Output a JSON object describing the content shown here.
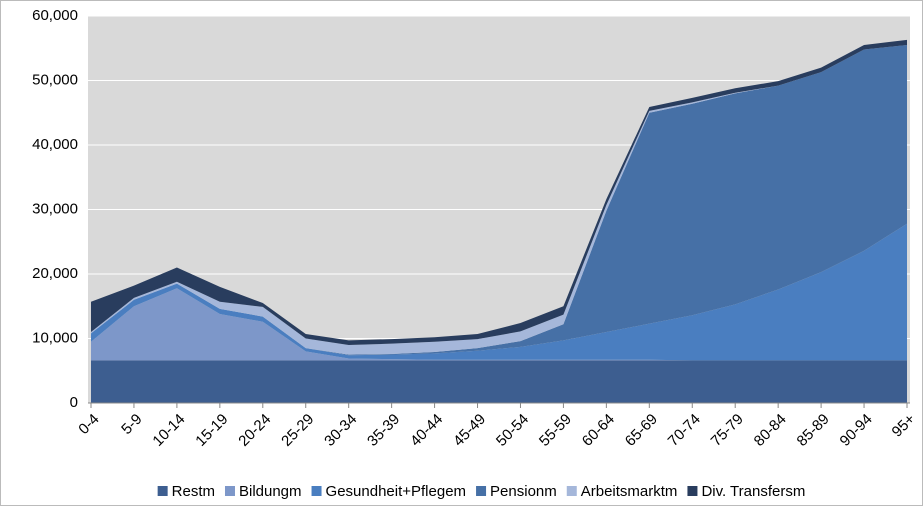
{
  "chart_data": {
    "type": "stacked_area",
    "categories": [
      "0-4",
      "5-9",
      "10-14",
      "15-19",
      "20-24",
      "25-29",
      "30-34",
      "35-39",
      "40-44",
      "45-49",
      "50-54",
      "55-59",
      "60-64",
      "65-69",
      "70-74",
      "75-79",
      "80-84",
      "85-89",
      "90-94",
      "95+"
    ],
    "series": [
      {
        "name": "Restm",
        "color": "#3d5e90",
        "values": [
          6600,
          6600,
          6600,
          6600,
          6600,
          6600,
          6600,
          6600,
          6600,
          6600,
          6600,
          6600,
          6600,
          6600,
          6600,
          6600,
          6600,
          6600,
          6600,
          6600
        ]
      },
      {
        "name": "Bildungm",
        "color": "#7d97c9",
        "values": [
          2900,
          8400,
          11200,
          7200,
          6000,
          1400,
          300,
          200,
          100,
          100,
          100,
          100,
          100,
          100,
          0,
          0,
          0,
          0,
          0,
          0
        ]
      },
      {
        "name": "Gesundheit+Pflegem",
        "color": "#4a7ec0",
        "values": [
          1300,
          1000,
          700,
          800,
          800,
          500,
          500,
          700,
          1000,
          1400,
          2000,
          3000,
          4300,
          5600,
          7000,
          8700,
          11000,
          13700,
          17000,
          21200
        ]
      },
      {
        "name": "Pensionm",
        "color": "#4670a6",
        "values": [
          0,
          0,
          0,
          0,
          0,
          0,
          100,
          100,
          200,
          400,
          900,
          2500,
          18800,
          32700,
          32800,
          32700,
          31600,
          31000,
          31200,
          27700
        ]
      },
      {
        "name": "Arbeitsmarktm",
        "color": "#a5b7da",
        "values": [
          200,
          300,
          300,
          1100,
          1500,
          1500,
          1500,
          1600,
          1600,
          1400,
          1500,
          1500,
          900,
          300,
          200,
          100,
          0,
          0,
          0,
          0
        ]
      },
      {
        "name": "Div. Transfersm",
        "color": "#293d5e",
        "values": [
          4700,
          1900,
          2200,
          2300,
          600,
          700,
          700,
          700,
          700,
          800,
          1300,
          1300,
          900,
          600,
          700,
          700,
          700,
          700,
          700,
          800
        ]
      }
    ],
    "ylim": [
      0,
      60000
    ],
    "yticks": [
      0,
      {
        "value": 10000,
        "label": "10,000"
      },
      {
        "value": 20000,
        "label": "20,000"
      },
      {
        "value": 30000,
        "label": "30,000"
      },
      {
        "value": 40000,
        "label": "40,000"
      },
      {
        "value": 50000,
        "label": "50,000"
      },
      {
        "value": 60000,
        "label": "60,000"
      }
    ],
    "grid": true,
    "legend": "bottom"
  }
}
